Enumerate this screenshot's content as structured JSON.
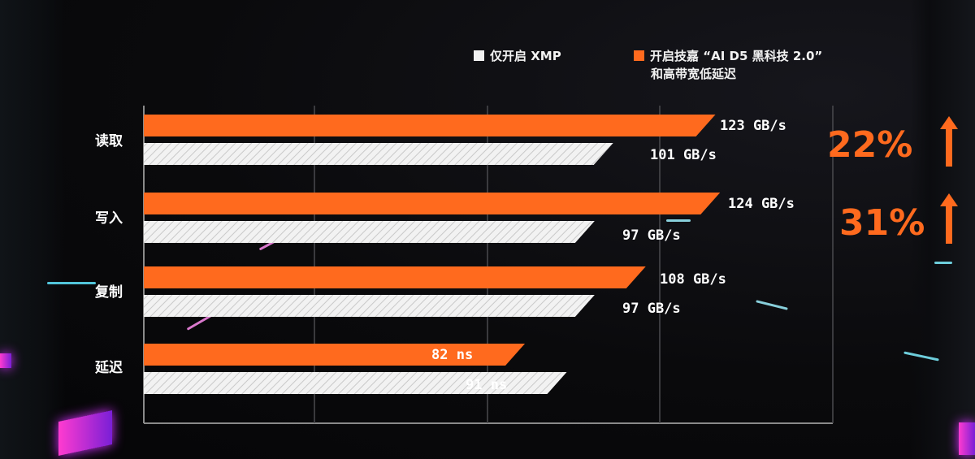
{
  "legend": {
    "white_label": "仅开启 XMP",
    "orange_label_line1": "开启技嘉 “AI D5 黑科技 2.0”",
    "orange_label_line2": "和高带宽低延迟"
  },
  "colors": {
    "orange": "#FF6A1E",
    "white": "#F2F2F2",
    "background": "#0A0A0C"
  },
  "callouts": [
    {
      "text": "22%",
      "arrow_icon": "arrow-up-icon"
    },
    {
      "text": "31%",
      "arrow_icon": "arrow-up-icon"
    }
  ],
  "chart_data": {
    "type": "bar",
    "orientation": "horizontal",
    "categories": [
      "读取",
      "写入",
      "复制",
      "延迟"
    ],
    "series": [
      {
        "name": "开启技嘉 “AI D5 黑科技 2.0” 和高带宽低延迟",
        "color": "#FF6A1E",
        "values": [
          123,
          124,
          108,
          82
        ],
        "value_labels": [
          "123 GB/s",
          "124 GB/s",
          "108 GB/s",
          "82 ns"
        ]
      },
      {
        "name": "仅开启 XMP",
        "color": "#F2F2F2",
        "values": [
          101,
          97,
          97,
          91
        ],
        "value_labels": [
          "101 GB/s",
          "97 GB/s",
          "97 GB/s",
          "91 ns"
        ]
      }
    ],
    "grid": true,
    "legend_position": "top-right"
  }
}
